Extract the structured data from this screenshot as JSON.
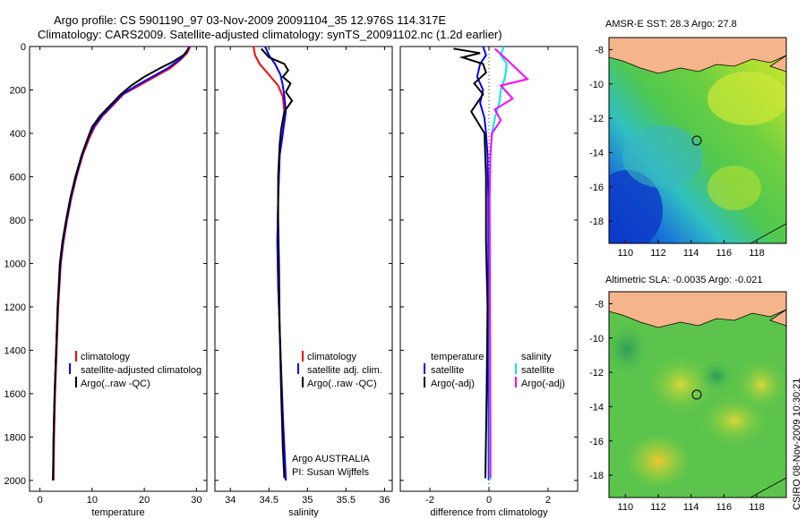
{
  "title_line1": "Argo profile: CS 5901190_97 03-Nov-2009 20091104_35 12.976S 114.317E",
  "title_line2": "Climatology: CARS2009. Satellite-adjusted climatology: synTS_20091102.nc (1.2d earlier)",
  "side_label": "CSIRO 08-Nov-2009 10:30:21",
  "argo_info": {
    "line1": "Argo AUSTRALIA",
    "line2": "PI: Susan Wijffels"
  },
  "colors": {
    "clim": "#ff0000",
    "sat": "#0000ff",
    "argo": "#000000",
    "sat_s": "#00e5ee",
    "argo_s": "#ff00ff"
  },
  "chart_data": [
    {
      "type": "line",
      "xlabel": "temperature",
      "ylabel": "",
      "xlim": [
        -2,
        32
      ],
      "ylim": [
        2050,
        0
      ],
      "xticks": [
        0,
        10,
        20,
        30
      ],
      "yticks": [
        0,
        200,
        400,
        600,
        800,
        1000,
        1200,
        1400,
        1600,
        1800,
        2000
      ],
      "legend": [
        "climatology",
        "satellite-adjusted climatolog",
        "Argo(..raw -QC)"
      ],
      "series": [
        {
          "name": "climatology",
          "color": "#ff0000",
          "x": [
            28.8,
            28.2,
            27,
            25,
            22,
            19,
            16,
            14,
            12,
            10.5,
            9.5,
            8.2,
            7,
            6,
            5.2,
            4.5,
            4,
            3.5,
            3.2,
            2.9,
            2.7,
            2.6
          ],
          "y": [
            0,
            30,
            60,
            100,
            140,
            180,
            220,
            270,
            320,
            370,
            420,
            500,
            600,
            700,
            800,
            900,
            1000,
            1200,
            1400,
            1600,
            1800,
            2000
          ]
        },
        {
          "name": "satellite-adjusted climatology",
          "color": "#0000ff",
          "x": [
            28.6,
            28,
            26.8,
            24.5,
            21.5,
            18.5,
            15.8,
            13.8,
            11.8,
            10.3,
            9.3,
            8.1,
            6.9,
            5.9,
            5.1,
            4.4,
            3.9,
            3.4,
            3.1,
            2.8,
            2.6,
            2.5
          ],
          "y": [
            0,
            30,
            60,
            100,
            140,
            180,
            220,
            270,
            320,
            370,
            420,
            500,
            600,
            700,
            800,
            900,
            1000,
            1200,
            1400,
            1600,
            1800,
            2000
          ]
        },
        {
          "name": "Argo",
          "color": "#000000",
          "x": [
            28.5,
            27.5,
            25.5,
            23,
            20,
            17.5,
            15.5,
            13.5,
            11.5,
            10,
            9.2,
            8,
            6.8,
            5.8,
            5,
            4.3,
            3.8,
            3.4,
            3.1,
            2.8,
            2.6,
            2.5
          ],
          "y": [
            10,
            40,
            70,
            100,
            140,
            180,
            220,
            270,
            320,
            370,
            420,
            500,
            600,
            700,
            800,
            900,
            1000,
            1200,
            1400,
            1600,
            1800,
            2000
          ]
        }
      ]
    },
    {
      "type": "line",
      "xlabel": "salinity",
      "xlim": [
        33.8,
        36.1
      ],
      "ylim": [
        2050,
        0
      ],
      "xticks": [
        34,
        34.5,
        35,
        35.5,
        36
      ],
      "legend": [
        "climatology",
        "satellite adj. clim.",
        "Argo(..raw -QC)"
      ],
      "series": [
        {
          "name": "climatology",
          "color": "#ff0000",
          "x": [
            34.3,
            34.32,
            34.38,
            34.5,
            34.62,
            34.68,
            34.7,
            34.68,
            34.64,
            34.62,
            34.61,
            34.62,
            34.64,
            34.66,
            34.68,
            34.7,
            34.72
          ],
          "y": [
            0,
            40,
            80,
            130,
            180,
            230,
            300,
            400,
            500,
            700,
            900,
            1100,
            1300,
            1500,
            1700,
            1850,
            2000
          ]
        },
        {
          "name": "satellite adj. clim.",
          "color": "#0000ff",
          "x": [
            34.45,
            34.5,
            34.58,
            34.65,
            34.68,
            34.7,
            34.72,
            34.68,
            34.64,
            34.62,
            34.61,
            34.62,
            34.64,
            34.66,
            34.68,
            34.7,
            34.72
          ],
          "y": [
            0,
            40,
            80,
            130,
            180,
            230,
            300,
            400,
            500,
            700,
            900,
            1100,
            1300,
            1500,
            1700,
            1850,
            2000
          ]
        },
        {
          "name": "Argo",
          "color": "#000000",
          "x": [
            34.4,
            34.5,
            34.7,
            34.75,
            34.68,
            34.78,
            34.72,
            34.8,
            34.7,
            34.66,
            34.64,
            34.62,
            34.62,
            34.63,
            34.64,
            34.66,
            34.68,
            34.7
          ],
          "y": [
            10,
            50,
            80,
            110,
            140,
            170,
            210,
            250,
            300,
            380,
            450,
            600,
            800,
            1000,
            1300,
            1600,
            1850,
            1990
          ]
        }
      ]
    },
    {
      "type": "line",
      "xlabel": "difference from climatology",
      "xlim": [
        -3,
        3
      ],
      "ylim": [
        2050,
        0
      ],
      "xticks": [
        -2,
        0,
        2
      ],
      "legend": [
        "temperature",
        "satellite",
        "Argo(-adj)",
        "salinity",
        "satellite",
        "Argo(-adj)"
      ],
      "series": [
        {
          "name": "temperature satellite",
          "color": "#0000ff",
          "x": [
            -0.2,
            -0.1,
            -0.3,
            -0.4,
            -0.2,
            -0.3,
            -0.15,
            -0.1,
            -0.05,
            -0.02,
            -0.02,
            -0.02,
            -0.01,
            -0.01
          ],
          "y": [
            0,
            40,
            80,
            140,
            200,
            260,
            330,
            400,
            500,
            700,
            1000,
            1400,
            1800,
            2000
          ]
        },
        {
          "name": "temperature Argo(-adj)",
          "color": "#000000",
          "x": [
            -1.2,
            -0.3,
            -0.9,
            -0.2,
            -0.1,
            -0.5,
            -0.2,
            -0.6,
            -0.15,
            -0.1,
            -0.1,
            -0.05,
            -0.08,
            -0.12
          ],
          "y": [
            10,
            30,
            50,
            80,
            120,
            170,
            220,
            300,
            400,
            600,
            900,
            1200,
            1600,
            1990
          ]
        },
        {
          "name": "salinity satellite",
          "color": "#00e5ee",
          "x": [
            0.5,
            0.4,
            0.6,
            0.55,
            0.4,
            0.35,
            0.2,
            0.1,
            0.05,
            0.02,
            0.02,
            0.02,
            0.02
          ],
          "y": [
            0,
            40,
            80,
            140,
            200,
            260,
            330,
            400,
            500,
            700,
            1000,
            1500,
            2000
          ]
        },
        {
          "name": "salinity Argo(-adj)",
          "color": "#ff00ff",
          "x": [
            0.2,
            0.6,
            1.3,
            0.4,
            0.8,
            0.2,
            0.4,
            0.1,
            0.05,
            0.02,
            0.03,
            0.04,
            0.05,
            0.05
          ],
          "y": [
            10,
            60,
            150,
            180,
            240,
            290,
            340,
            400,
            500,
            700,
            1000,
            1400,
            1800,
            1990
          ]
        }
      ]
    }
  ],
  "maps": [
    {
      "title": "AMSR-E SST: 28.3  Argo: 27.8",
      "yticks": [
        "-8",
        "-10",
        "-12",
        "-14",
        "-16",
        "-18"
      ],
      "xticks": [
        "110",
        "112",
        "114",
        "116",
        "118"
      ]
    },
    {
      "title": "Altimetric SLA: -0.0035  Argo: -0.021",
      "yticks": [
        "-8",
        "-10",
        "-12",
        "-14",
        "-16",
        "-18"
      ],
      "xticks": [
        "110",
        "112",
        "114",
        "116",
        "118"
      ]
    }
  ]
}
